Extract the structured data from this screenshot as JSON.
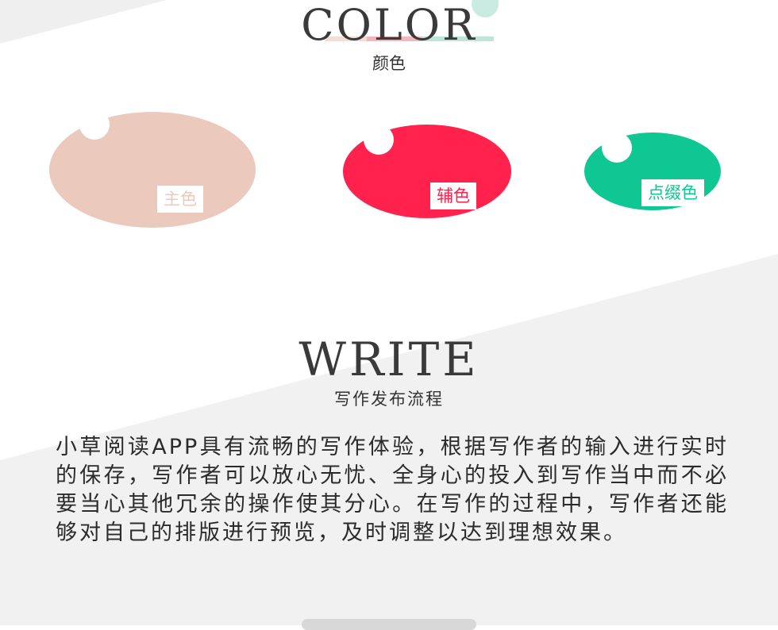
{
  "color_section": {
    "title": "COLOR",
    "subtitle": "颜色"
  },
  "swatches": [
    {
      "label": "主色",
      "color": "#ebcabd"
    },
    {
      "label": "辅色",
      "color": "#fe224d"
    },
    {
      "label": "点缀色",
      "color": "#0ec792"
    }
  ],
  "write_section": {
    "title": "WRITE",
    "subtitle": "写作发布流程",
    "paragraph": "小草阅读APP具有流畅的写作体验，根据写作者的输入进行实时的保存，写作者可以放心无忧、全身心的投入到写作当中而不必要当心其他冗余的操作使其分心。在写作的过程中，写作者还能够对自己的排版进行预览，及时调整以达到理想效果。"
  }
}
